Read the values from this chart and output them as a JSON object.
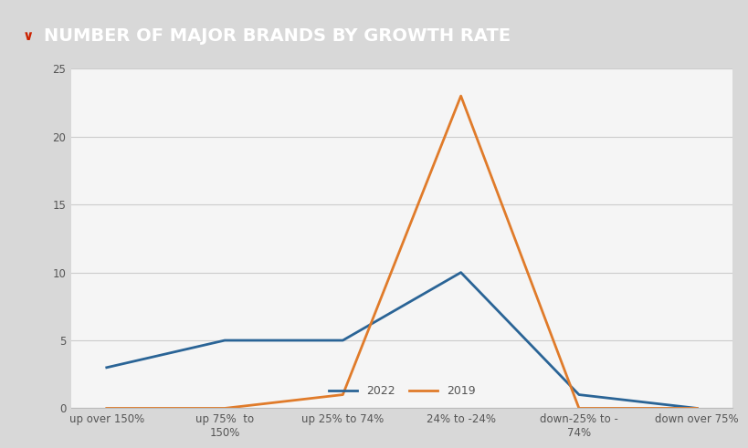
{
  "title": "NUMBER OF MAJOR BRANDS BY GROWTH RATE",
  "categories": [
    "up over 150%",
    "up 75%  to\n150%",
    "up 25% to 74%",
    "24% to -24%",
    "down-25% to -\n74%",
    "down over 75%"
  ],
  "series_2022": [
    3,
    5,
    5,
    10,
    1,
    0
  ],
  "series_2019": [
    0,
    0,
    1,
    23,
    0,
    0
  ],
  "color_2022": "#2a6496",
  "color_2019": "#e07b2a",
  "legend_2022": "2022",
  "legend_2019": "2019",
  "ylim": [
    0,
    25
  ],
  "yticks": [
    0,
    5,
    10,
    15,
    20,
    25
  ],
  "background_title": "#3a3a3a",
  "background_chart": "#d8d8d8",
  "background_plot": "#f5f5f5",
  "title_color": "#ffffff",
  "title_fontsize": 14,
  "axis_fontsize": 8.5,
  "legend_fontsize": 9,
  "line_width": 2.0,
  "chevron_color": "#cc2200",
  "grid_color": "#cccccc",
  "tick_color": "#555555"
}
